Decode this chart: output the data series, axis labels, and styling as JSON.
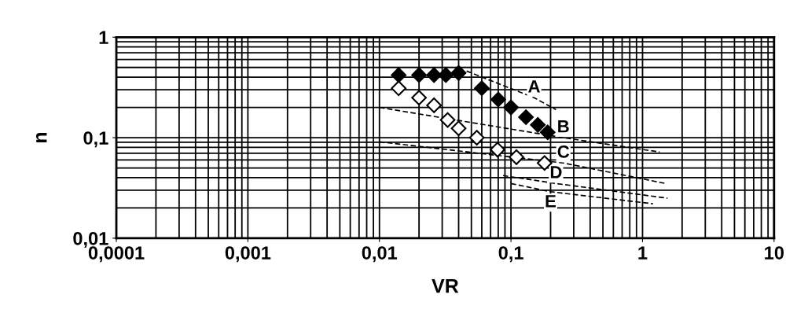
{
  "chart_data": {
    "type": "scatter",
    "xlabel": "VR",
    "ylabel": "n",
    "log": "xy",
    "grid": true,
    "xlim": [
      0.0001,
      10
    ],
    "xticks": [
      {
        "value": 0.0001,
        "label": "0,0001"
      },
      {
        "value": 0.001,
        "label": "0,001"
      },
      {
        "value": 0.01,
        "label": "0,01"
      },
      {
        "value": 0.1,
        "label": "0,1"
      },
      1,
      10
    ],
    "ylim": [
      0.01,
      1
    ],
    "yticks": [
      {
        "value": 0.01,
        "label": "0,01"
      },
      {
        "value": 0.1,
        "label": "0,1"
      },
      1
    ],
    "series": [
      {
        "marker": "diamond",
        "color": "#000000",
        "x": [
          0.014,
          0.02,
          0.026,
          0.032,
          0.04,
          0.06,
          0.08,
          0.1,
          0.13,
          0.16,
          0.19
        ],
        "values": [
          0.42,
          0.42,
          0.42,
          0.42,
          0.44,
          0.31,
          0.24,
          0.2,
          0.16,
          0.134,
          0.113
        ]
      },
      {
        "marker": "diamond",
        "color": "#ffffff",
        "x": [
          0.014,
          0.02,
          0.026,
          0.033,
          0.04,
          0.055,
          0.079,
          0.11,
          0.18
        ],
        "values": [
          0.31,
          0.25,
          0.21,
          0.15,
          0.124,
          0.1,
          0.076,
          0.064,
          0.056
        ]
      },
      {
        "name": "A",
        "type": "line",
        "line_style": "dashed",
        "marker": "none",
        "color": "#000000",
        "x": [
          0.046,
          0.15,
          0.22
        ],
        "values": [
          0.46,
          0.25,
          0.19
        ]
      },
      {
        "name": "B",
        "type": "line",
        "line_style": "dashed",
        "marker": "none",
        "color": "#000000",
        "x": [
          0.01,
          0.25,
          1.35
        ],
        "values": [
          0.2,
          0.1,
          0.072
        ]
      },
      {
        "name": "C",
        "type": "line",
        "line_style": "dashed",
        "marker": "none",
        "color": "#000000",
        "x": [
          0.01,
          0.25,
          1.5
        ],
        "values": [
          0.091,
          0.056,
          0.035
        ]
      },
      {
        "name": "D",
        "type": "line",
        "line_style": "dashed",
        "marker": "none",
        "color": "#000000",
        "x": [
          0.087,
          0.22,
          1.55
        ],
        "values": [
          0.042,
          0.035,
          0.025
        ]
      },
      {
        "name": "E",
        "type": "line",
        "line_style": "dashed",
        "marker": "none",
        "color": "#000000",
        "x": [
          0.1,
          0.2,
          1.2
        ],
        "values": [
          0.035,
          0.029,
          0.022
        ]
      }
    ]
  }
}
